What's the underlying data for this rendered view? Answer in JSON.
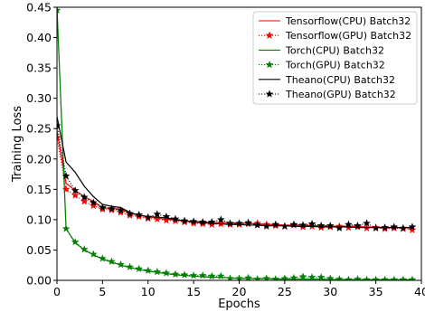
{
  "chart_data": {
    "type": "line",
    "title": "",
    "xlabel": "Epochs",
    "ylabel": "Training Loss",
    "xlim": [
      0,
      40
    ],
    "ylim": [
      0,
      0.45
    ],
    "grid": false,
    "legend_position": "top-right",
    "xticks": [
      0,
      5,
      10,
      15,
      20,
      25,
      30,
      35,
      40
    ],
    "xtick_labels": [
      "0",
      "5",
      "10",
      "15",
      "20",
      "25",
      "30",
      "35",
      "40"
    ],
    "yticks": [
      0,
      0.05,
      0.1,
      0.15,
      0.2,
      0.25,
      0.3,
      0.35,
      0.4,
      0.45
    ],
    "ytick_labels": [
      "0.00",
      "0.05",
      "0.10",
      "0.15",
      "0.20",
      "0.25",
      "0.30",
      "0.35",
      "0.40",
      "0.45"
    ],
    "x": [
      0,
      1,
      2,
      3,
      4,
      5,
      6,
      7,
      8,
      9,
      10,
      11,
      12,
      13,
      14,
      15,
      16,
      17,
      18,
      19,
      20,
      21,
      22,
      23,
      24,
      25,
      26,
      27,
      28,
      29,
      30,
      31,
      32,
      33,
      34,
      35,
      36,
      37,
      38,
      39
    ],
    "series": [
      {
        "name": "Tensorflow(CPU) Batch32",
        "color": "#ff0000",
        "style": "solid",
        "marker": "none",
        "values": [
          0.245,
          0.16,
          0.148,
          0.138,
          0.13,
          0.12,
          0.118,
          0.118,
          0.11,
          0.108,
          0.105,
          0.103,
          0.1,
          0.1,
          0.098,
          0.097,
          0.096,
          0.095,
          0.095,
          0.095,
          0.094,
          0.094,
          0.093,
          0.092,
          0.092,
          0.091,
          0.091,
          0.091,
          0.09,
          0.09,
          0.089,
          0.089,
          0.089,
          0.089,
          0.088,
          0.088,
          0.087,
          0.087,
          0.087,
          0.086
        ]
      },
      {
        "name": "Tensorflow(GPU) Batch32",
        "color": "#ff0000",
        "style": "dotted",
        "marker": "star",
        "values": [
          0.235,
          0.15,
          0.14,
          0.13,
          0.123,
          0.117,
          0.116,
          0.112,
          0.107,
          0.105,
          0.102,
          0.101,
          0.099,
          0.098,
          0.096,
          0.094,
          0.093,
          0.092,
          0.093,
          0.092,
          0.092,
          0.093,
          0.094,
          0.092,
          0.09,
          0.089,
          0.091,
          0.088,
          0.089,
          0.087,
          0.088,
          0.089,
          0.087,
          0.088,
          0.086,
          0.087,
          0.085,
          0.086,
          0.085,
          0.083
        ]
      },
      {
        "name": "Torch(CPU) Batch32",
        "color": "#008000",
        "style": "solid",
        "marker": "none",
        "values": [
          0.45,
          0.085,
          0.062,
          0.05,
          0.042,
          0.035,
          0.03,
          0.025,
          0.021,
          0.018,
          0.015,
          0.013,
          0.011,
          0.009,
          0.008,
          0.007,
          0.006,
          0.005,
          0.005,
          0.004,
          0.003,
          0.003,
          0.003,
          0.003,
          0.002,
          0.002,
          0.002,
          0.002,
          0.002,
          0.002,
          0.001,
          0.001,
          0.001,
          0.001,
          0.001,
          0.001,
          0.001,
          0.001,
          0.001,
          0.001
        ]
      },
      {
        "name": "Torch(GPU) Batch32",
        "color": "#008000",
        "style": "dotted",
        "marker": "star",
        "values": [
          0.445,
          0.085,
          0.063,
          0.051,
          0.043,
          0.036,
          0.031,
          0.026,
          0.022,
          0.019,
          0.016,
          0.014,
          0.012,
          0.01,
          0.009,
          0.008,
          0.008,
          0.007,
          0.007,
          0.003,
          0.003,
          0.004,
          0.002,
          0.003,
          0.002,
          0.003,
          0.004,
          0.006,
          0.005,
          0.005,
          0.003,
          0.002,
          0.001,
          0.002,
          0.001,
          0.001,
          0.001,
          0.001,
          0.001,
          0.001
        ]
      },
      {
        "name": "Theano(CPU) Batch32",
        "color": "#000000",
        "style": "solid",
        "marker": "none",
        "values": [
          0.27,
          0.195,
          0.178,
          0.155,
          0.138,
          0.125,
          0.122,
          0.12,
          0.112,
          0.107,
          0.105,
          0.104,
          0.103,
          0.1,
          0.098,
          0.096,
          0.095,
          0.094,
          0.093,
          0.092,
          0.092,
          0.091,
          0.091,
          0.09,
          0.09,
          0.09,
          0.089,
          0.089,
          0.089,
          0.088,
          0.088,
          0.088,
          0.088,
          0.087,
          0.087,
          0.087,
          0.087,
          0.087,
          0.087,
          0.087
        ]
      },
      {
        "name": "Theano(GPU) Batch32",
        "color": "#000000",
        "style": "dotted",
        "marker": "star",
        "values": [
          0.255,
          0.172,
          0.148,
          0.137,
          0.128,
          0.12,
          0.118,
          0.115,
          0.11,
          0.108,
          0.104,
          0.109,
          0.105,
          0.101,
          0.098,
          0.097,
          0.096,
          0.096,
          0.1,
          0.094,
          0.094,
          0.095,
          0.091,
          0.089,
          0.092,
          0.089,
          0.092,
          0.091,
          0.093,
          0.09,
          0.09,
          0.086,
          0.092,
          0.09,
          0.094,
          0.086,
          0.087,
          0.088,
          0.086,
          0.088
        ]
      }
    ]
  }
}
